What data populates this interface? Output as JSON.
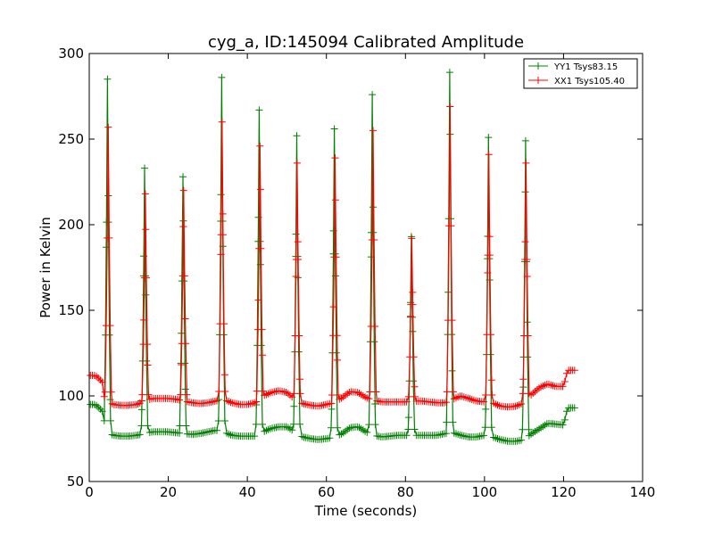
{
  "chart_data": {
    "type": "line",
    "title": "cyg_a, ID:145094 Calibrated Amplitude",
    "xlabel": "Time (seconds)",
    "ylabel": "Power in Kelvin",
    "xlim": [
      0,
      140
    ],
    "ylim": [
      50,
      300
    ],
    "xticks": [
      0,
      20,
      40,
      60,
      80,
      100,
      120,
      140
    ],
    "yticks": [
      50,
      100,
      150,
      200,
      250,
      300
    ],
    "grid": false,
    "legend_position": "top-right",
    "series": [
      {
        "name": "YY1 Tsys83.15",
        "color": "#008000",
        "baseline": [
          [
            0.3,
            95
          ],
          [
            1.5,
            95
          ],
          [
            2.5,
            93
          ],
          [
            3.3,
            91
          ],
          [
            3.6,
            81
          ],
          [
            6,
            77
          ],
          [
            8,
            76.5
          ],
          [
            10,
            76.5
          ],
          [
            12,
            77
          ],
          [
            14,
            78
          ],
          [
            16,
            79
          ],
          [
            20,
            79
          ],
          [
            22,
            78.5
          ],
          [
            24,
            78
          ],
          [
            26,
            77.5
          ],
          [
            28,
            78
          ],
          [
            30,
            79
          ],
          [
            32,
            80
          ],
          [
            34,
            79
          ],
          [
            36,
            77
          ],
          [
            38,
            76.5
          ],
          [
            40,
            76.5
          ],
          [
            42,
            76.5
          ],
          [
            44,
            79
          ],
          [
            46,
            81
          ],
          [
            48,
            82
          ],
          [
            50,
            82
          ],
          [
            52,
            79
          ],
          [
            54,
            76
          ],
          [
            56,
            75
          ],
          [
            58,
            74.5
          ],
          [
            60,
            75
          ],
          [
            62,
            76
          ],
          [
            64,
            78
          ],
          [
            66,
            81.5
          ],
          [
            68,
            82
          ],
          [
            70,
            79
          ],
          [
            72,
            77
          ],
          [
            74,
            76
          ],
          [
            78,
            77
          ],
          [
            80,
            77
          ],
          [
            84,
            77
          ],
          [
            88,
            77
          ],
          [
            90,
            78
          ],
          [
            92,
            78.5
          ],
          [
            94,
            77
          ],
          [
            96,
            76
          ],
          [
            98,
            76
          ],
          [
            100,
            77
          ],
          [
            102,
            76
          ],
          [
            104,
            74.5
          ],
          [
            106,
            73.5
          ],
          [
            108,
            73.5
          ],
          [
            110,
            74.5
          ],
          [
            112,
            78
          ],
          [
            114,
            81
          ],
          [
            116,
            84
          ],
          [
            118,
            83.5
          ],
          [
            120,
            83
          ],
          [
            121,
            93
          ],
          [
            123,
            93
          ]
        ],
        "peaks": [
          {
            "x": 4.6,
            "y": 285
          },
          {
            "x": 14.0,
            "y": 233
          },
          {
            "x": 23.7,
            "y": 228
          },
          {
            "x": 33.5,
            "y": 286
          },
          {
            "x": 43.0,
            "y": 267
          },
          {
            "x": 52.5,
            "y": 252
          },
          {
            "x": 62.0,
            "y": 256
          },
          {
            "x": 71.6,
            "y": 276
          },
          {
            "x": 81.5,
            "y": 193
          },
          {
            "x": 91.2,
            "y": 289
          },
          {
            "x": 101.0,
            "y": 251
          },
          {
            "x": 110.4,
            "y": 249
          }
        ]
      },
      {
        "name": "XX1 Tsys105.40",
        "color": "#ff0000",
        "baseline": [
          [
            0.3,
            112
          ],
          [
            1.5,
            112
          ],
          [
            2.5,
            110
          ],
          [
            3.3,
            108
          ],
          [
            3.6,
            100
          ],
          [
            6,
            95
          ],
          [
            8,
            94.5
          ],
          [
            10,
            94.5
          ],
          [
            12,
            95
          ],
          [
            14,
            97
          ],
          [
            16,
            98.5
          ],
          [
            20,
            98.5
          ],
          [
            22,
            98
          ],
          [
            24,
            97
          ],
          [
            26,
            96
          ],
          [
            28,
            95.5
          ],
          [
            30,
            96
          ],
          [
            32,
            97
          ],
          [
            34,
            98
          ],
          [
            36,
            96
          ],
          [
            38,
            95
          ],
          [
            40,
            95
          ],
          [
            42,
            96
          ],
          [
            44,
            100
          ],
          [
            46,
            102
          ],
          [
            48,
            103
          ],
          [
            50,
            102
          ],
          [
            52,
            98
          ],
          [
            54,
            95.5
          ],
          [
            56,
            94.5
          ],
          [
            58,
            94
          ],
          [
            60,
            95
          ],
          [
            62,
            96
          ],
          [
            64,
            99
          ],
          [
            66,
            102.5
          ],
          [
            68,
            102
          ],
          [
            70,
            99
          ],
          [
            72,
            97.5
          ],
          [
            74,
            96.5
          ],
          [
            78,
            96.5
          ],
          [
            80,
            96.5
          ],
          [
            84,
            97
          ],
          [
            88,
            96
          ],
          [
            90,
            96
          ],
          [
            92,
            98
          ],
          [
            94,
            100
          ],
          [
            96,
            98.5
          ],
          [
            98,
            97
          ],
          [
            100,
            96.5
          ],
          [
            102,
            96
          ],
          [
            104,
            94
          ],
          [
            106,
            93.5
          ],
          [
            108,
            94
          ],
          [
            110,
            96
          ],
          [
            112,
            101
          ],
          [
            114,
            105
          ],
          [
            116,
            107
          ],
          [
            118,
            105.5
          ],
          [
            120,
            105.5
          ],
          [
            121,
            115
          ],
          [
            123,
            115
          ]
        ],
        "peaks": [
          {
            "x": 4.8,
            "y": 257
          },
          {
            "x": 14.2,
            "y": 218
          },
          {
            "x": 23.9,
            "y": 220
          },
          {
            "x": 33.6,
            "y": 260
          },
          {
            "x": 43.2,
            "y": 246
          },
          {
            "x": 52.6,
            "y": 236
          },
          {
            "x": 62.2,
            "y": 239
          },
          {
            "x": 71.8,
            "y": 255
          },
          {
            "x": 81.6,
            "y": 192
          },
          {
            "x": 91.3,
            "y": 269
          },
          {
            "x": 101.1,
            "y": 241
          },
          {
            "x": 110.5,
            "y": 236
          }
        ]
      }
    ]
  }
}
